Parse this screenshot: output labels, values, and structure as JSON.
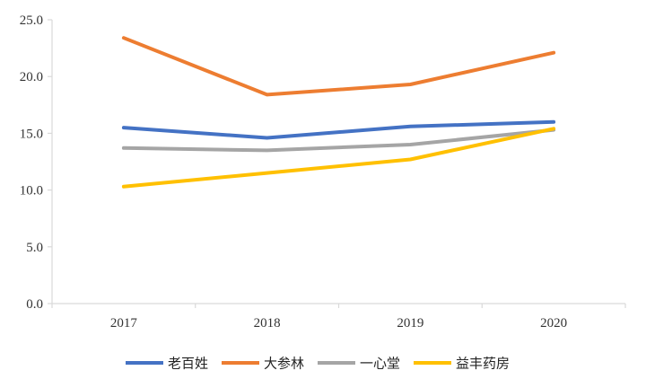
{
  "chart_data": {
    "type": "line",
    "title": "",
    "xlabel": "",
    "ylabel": "",
    "categories": [
      "2017",
      "2018",
      "2019",
      "2020"
    ],
    "ylim": [
      0,
      25
    ],
    "y_ticks": [
      "0.0",
      "5.0",
      "10.0",
      "15.0",
      "20.0",
      "25.0"
    ],
    "grid": false,
    "legend_position": "bottom",
    "series": [
      {
        "name": "老百姓",
        "color": "#4472C4",
        "values": [
          15.5,
          14.6,
          15.6,
          16.0
        ]
      },
      {
        "name": "大参林",
        "color": "#ED7D31",
        "values": [
          23.4,
          18.4,
          19.3,
          22.1
        ]
      },
      {
        "name": "一心堂",
        "color": "#A5A5A5",
        "values": [
          13.7,
          13.5,
          14.0,
          15.3
        ]
      },
      {
        "name": "益丰药房",
        "color": "#FFC000",
        "values": [
          10.3,
          11.5,
          12.7,
          15.4
        ]
      }
    ]
  }
}
